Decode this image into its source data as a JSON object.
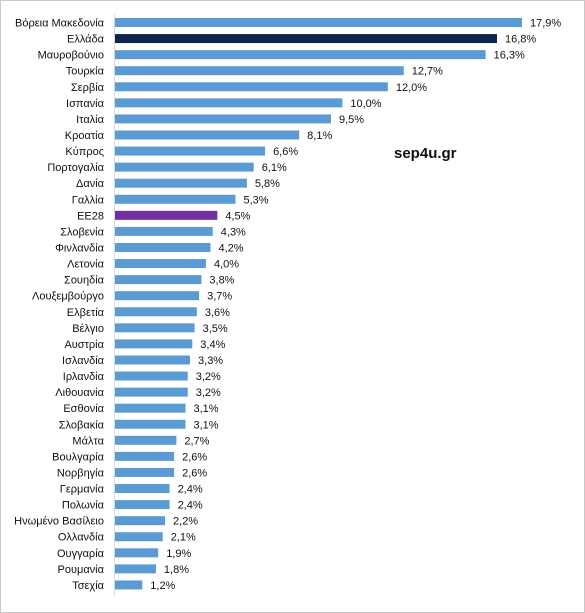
{
  "watermark": "sep4u.gr",
  "chart_data": {
    "type": "bar",
    "orientation": "horizontal",
    "categories": [
      "Βόρεια Μακεδονία",
      "Ελλάδα",
      "Μαυροβούνιο",
      "Τουρκία",
      "Σερβία",
      "Ισπανία",
      "Ιταλία",
      "Κροατία",
      "Κύπρος",
      "Πορτογαλία",
      "Δανία",
      "Γαλλία",
      "ΕΕ28",
      "Σλοβενία",
      "Φινλανδία",
      "Λετονία",
      "Σουηδία",
      "Λουξεμβούργο",
      "Ελβετία",
      "Βέλγιο",
      "Αυστρία",
      "Ισλανδία",
      "Ιρλανδία",
      "Λιθουανία",
      "Εσθονία",
      "Σλοβακία",
      "Μάλτα",
      "Βουλγαρία",
      "Νορβηγία",
      "Γερμανία",
      "Πολωνία",
      "Ηνωμένο Βασίλειο",
      "Ολλανδία",
      "Ουγγαρία",
      "Ρουμανία",
      "Τσεχία"
    ],
    "values": [
      17.9,
      16.8,
      16.3,
      12.7,
      12.0,
      10.0,
      9.5,
      8.1,
      6.6,
      6.1,
      5.8,
      5.3,
      4.5,
      4.3,
      4.2,
      4.0,
      3.8,
      3.7,
      3.6,
      3.5,
      3.4,
      3.3,
      3.2,
      3.2,
      3.1,
      3.1,
      2.7,
      2.6,
      2.6,
      2.4,
      2.4,
      2.2,
      2.1,
      1.9,
      1.8,
      1.2
    ],
    "value_labels": [
      "17,9%",
      "16,8%",
      "16,3%",
      "12,7%",
      "12,0%",
      "10,0%",
      "9,5%",
      "8,1%",
      "6,6%",
      "6,1%",
      "5,8%",
      "5,3%",
      "4,5%",
      "4,3%",
      "4,2%",
      "4,0%",
      "3,8%",
      "3,7%",
      "3,6%",
      "3,5%",
      "3,4%",
      "3,3%",
      "3,2%",
      "3,2%",
      "3,1%",
      "3,1%",
      "2,7%",
      "2,6%",
      "2,6%",
      "2,4%",
      "2,4%",
      "2,2%",
      "2,1%",
      "1,9%",
      "1,8%",
      "1,2%"
    ],
    "colors": {
      "default": "#5b9bd5",
      "Ελλάδα": "#0d2451",
      "ΕΕ28": "#7030a0"
    },
    "xlim": [
      0,
      18.5
    ],
    "grid": false,
    "legend": "none"
  }
}
